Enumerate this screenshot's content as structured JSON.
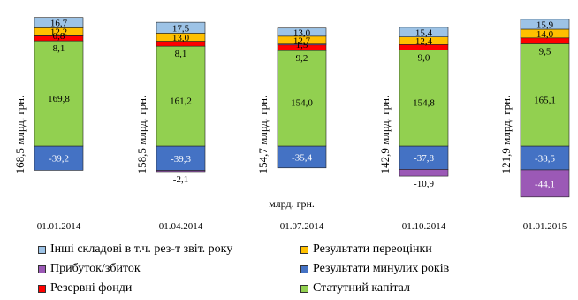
{
  "colors": {
    "other": "#9dc3e6",
    "reval": "#ffc000",
    "profit": "#9b59b6",
    "retained": "#4472c4",
    "reserve": "#ff0000",
    "capital": "#92d050"
  },
  "chart_data": {
    "type": "bar",
    "stacked": true,
    "title": "",
    "xlabel": "млрд. грн.",
    "ylabel": "",
    "categories": [
      "01.01.2014",
      "01.04.2014",
      "01.07.2014",
      "01.10.2014",
      "01.01.2015"
    ],
    "totals": [
      "168,5 млрд. грн.",
      "158,5 млрд. грн.",
      "154,7 млрд. грн.",
      "142,9 млрд. грн.",
      "121,9 млрд. грн."
    ],
    "series": [
      {
        "key": "retained",
        "name": "Результати минулих років",
        "values": [
          -39.2,
          -39.3,
          -35.4,
          -37.8,
          -38.5
        ],
        "labels": [
          "-39,2",
          "-39,3",
          "-35,4",
          "-37,8",
          "-38,5"
        ]
      },
      {
        "key": "profit",
        "name": "Прибуток/збиток",
        "values": [
          0,
          -2.1,
          0,
          -10.9,
          -44.1
        ],
        "labels": [
          "",
          "-2,1",
          "",
          "-10,9",
          "-44,1"
        ]
      },
      {
        "key": "capital",
        "name": "Статутний капітал",
        "values": [
          169.8,
          161.2,
          154.0,
          154.8,
          165.1
        ],
        "labels": [
          "169,8",
          "161,2",
          "154,0",
          "154,8",
          "165,1"
        ]
      },
      {
        "key": "reserve",
        "name": "Резервні фонди",
        "values": [
          8.1,
          8.1,
          9.2,
          9.0,
          9.5
        ],
        "labels": [
          "8,1",
          "8,1",
          "9,2",
          "9,0",
          "9,5"
        ]
      },
      {
        "key": "profit_pos",
        "name": "Прибуток/збиток",
        "values": [
          0.8,
          0,
          1.5,
          0,
          0
        ],
        "labels": [
          "0,8",
          "",
          "1,5",
          "",
          ""
        ]
      },
      {
        "key": "reval",
        "name": "Результати переоцінки",
        "values": [
          12.2,
          13.0,
          12.7,
          12.4,
          14.0
        ],
        "labels": [
          "12,2",
          "13,0",
          "12,7",
          "12,4",
          "14,0"
        ]
      },
      {
        "key": "other",
        "name": "Інші складові в т.ч. рез-т звіт. року",
        "values": [
          16.7,
          17.5,
          13.0,
          15.4,
          15.9
        ],
        "labels": [
          "16,7",
          "17,5",
          "13,0",
          "15,4",
          "15,9"
        ]
      }
    ]
  },
  "legend": [
    {
      "key": "other",
      "label": "Інші складові в т.ч. рез-т звіт. року"
    },
    {
      "key": "reval",
      "label": "Результати переоцінки"
    },
    {
      "key": "profit",
      "label": "Прибуток/збиток"
    },
    {
      "key": "retained",
      "label": "Результати минулих років"
    },
    {
      "key": "reserve",
      "label": "Резервні фонди"
    },
    {
      "key": "capital",
      "label": "Статутний капітал"
    }
  ]
}
